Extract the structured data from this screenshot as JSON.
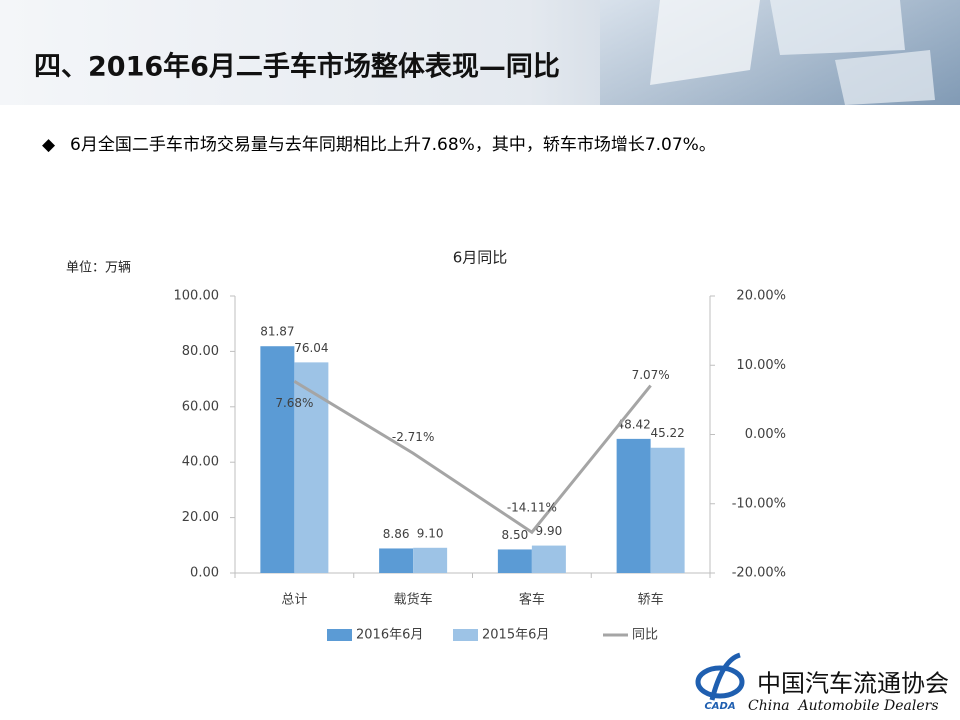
{
  "header": {
    "title": "四、2016年6月二手车市场整体表现—同比"
  },
  "bullet": "6月全国二手车市场交易量与去年同期相比上升7.68%，其中，轿车市场增长7.07%。",
  "chart_data": {
    "type": "bar",
    "title": "6月同比",
    "unit_label": "单位：万辆",
    "categories": [
      "总计",
      "载货车",
      "客车",
      "轿车"
    ],
    "series": [
      {
        "name": "2016年6月",
        "color": "#5b9bd5",
        "values": [
          81.87,
          8.86,
          8.5,
          48.42
        ],
        "value_labels": [
          "81.87",
          "8.86",
          "8.50",
          "48.42"
        ]
      },
      {
        "name": "2015年6月",
        "color": "#9dc3e6",
        "values": [
          76.04,
          9.1,
          9.9,
          45.22
        ],
        "value_labels": [
          "76.04",
          "9.10",
          "9.90",
          "45.22"
        ]
      },
      {
        "name": "同比",
        "type": "line",
        "axis": "y2",
        "color": "#a5a5a5",
        "values": [
          7.68,
          -2.71,
          -14.11,
          7.07
        ],
        "value_labels": [
          "7.68%",
          "-2.71%",
          "-14.11%",
          "7.07%"
        ]
      }
    ],
    "ylim": [
      0,
      100
    ],
    "yticks": [
      {
        "value": 0,
        "label": "0.00"
      },
      {
        "value": 20,
        "label": "20.00"
      },
      {
        "value": 40,
        "label": "40.00"
      },
      {
        "value": 60,
        "label": "60.00"
      },
      {
        "value": 80,
        "label": "80.00"
      },
      {
        "value": 100,
        "label": "100.00"
      }
    ],
    "y2lim": [
      -20,
      20
    ],
    "y2ticks": [
      {
        "value": -20,
        "label": "-20.00%"
      },
      {
        "value": -10,
        "label": "-10.00%"
      },
      {
        "value": 0,
        "label": "0.00%"
      },
      {
        "value": 10,
        "label": "10.00%"
      },
      {
        "value": 20,
        "label": "20.00%"
      }
    ],
    "legend": "bottom"
  },
  "logo": {
    "abbr": "CADA",
    "name": "中国汽车流通协会",
    "english": "China  Automobile Dealers"
  }
}
